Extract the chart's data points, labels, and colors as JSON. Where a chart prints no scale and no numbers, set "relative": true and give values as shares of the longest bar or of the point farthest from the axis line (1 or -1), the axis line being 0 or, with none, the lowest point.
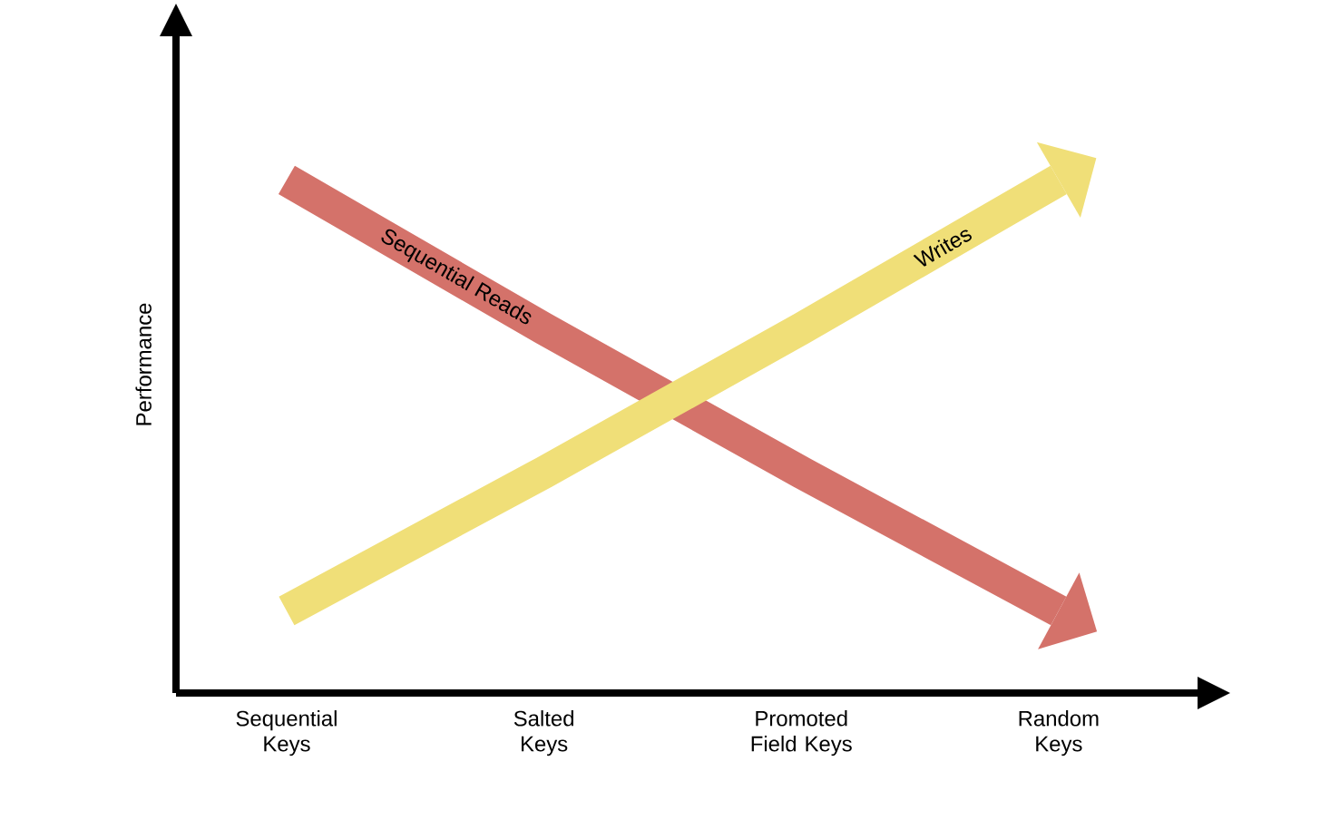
{
  "chart_data": {
    "type": "line",
    "relative": true,
    "ylabel": "Performance",
    "categories": [
      "Sequential Keys",
      "Salted Keys",
      "Promoted Field Keys",
      "Random Keys"
    ],
    "series": [
      {
        "name": "Sequential Reads",
        "color": "#d4726a",
        "values": [
          1,
          0.71,
          0.43,
          0.16
        ]
      },
      {
        "name": "Writes",
        "color": "#f0df78",
        "values": [
          0.16,
          0.43,
          0.71,
          1
        ]
      }
    ],
    "legend": false,
    "marker": "none"
  }
}
